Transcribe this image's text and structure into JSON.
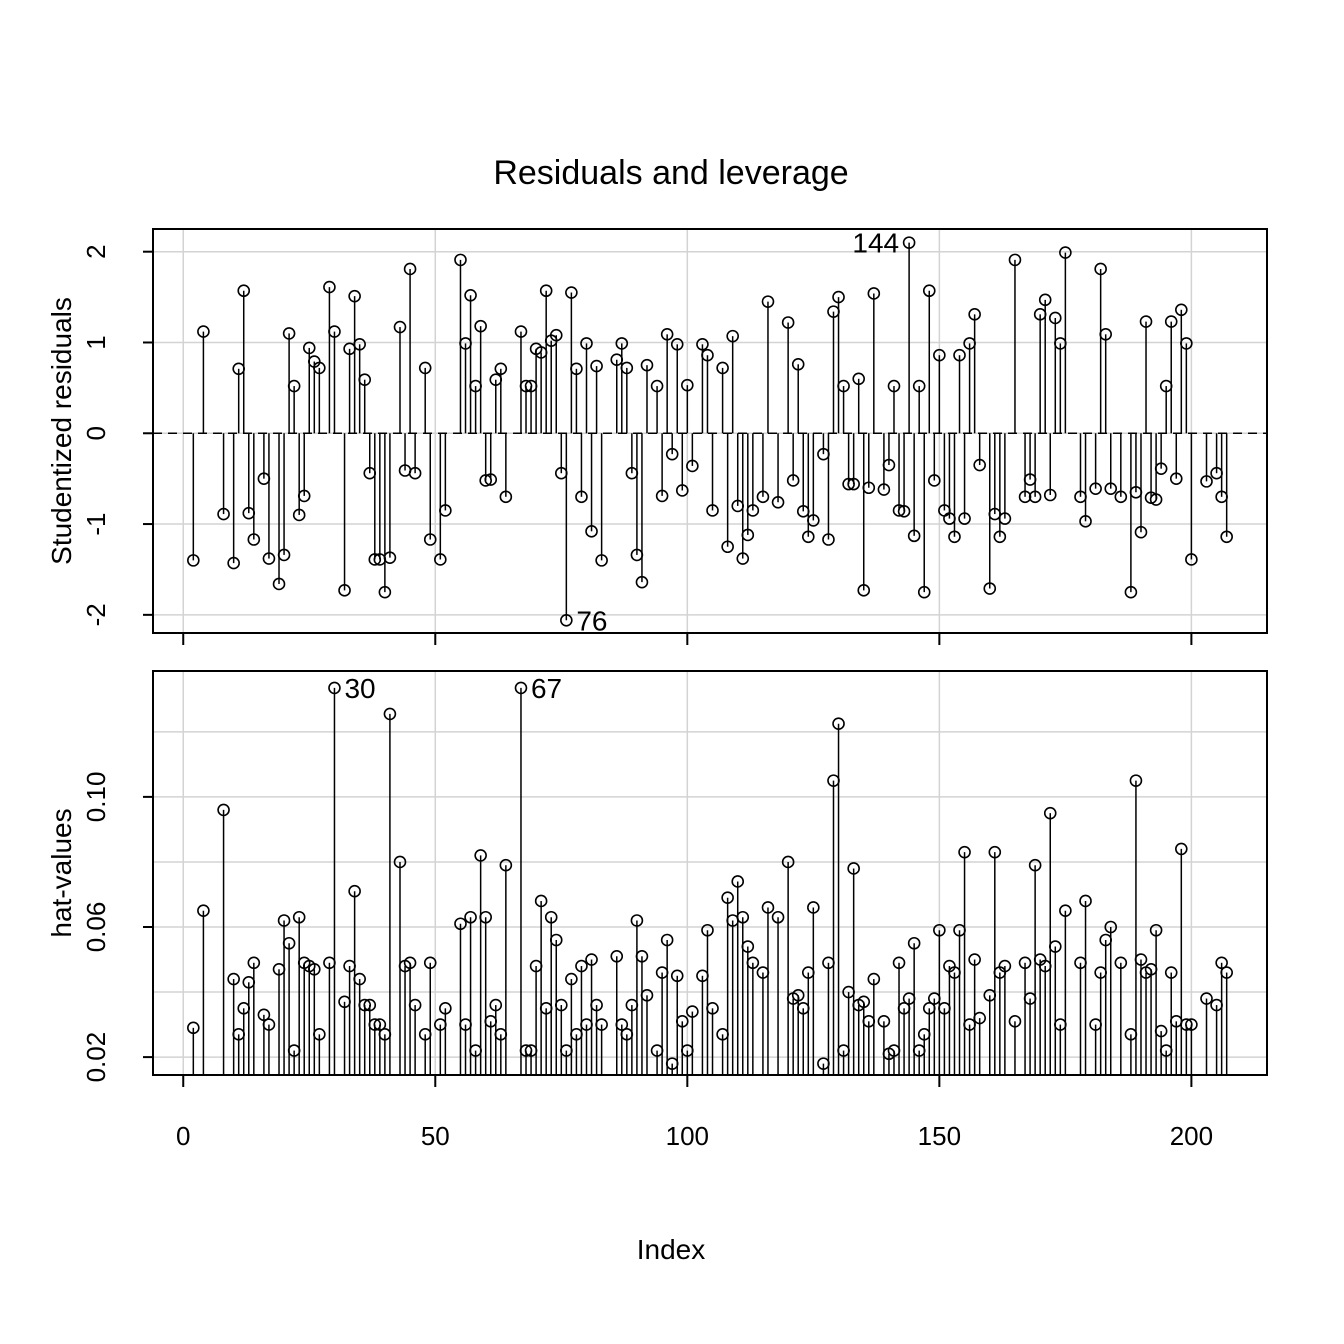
{
  "chart_data": {
    "title": "Residuals and leverage",
    "xlabel": "Index",
    "x_ticks": [
      0,
      50,
      100,
      150,
      200
    ],
    "xlim": [
      -6,
      215
    ],
    "grid": true,
    "panels": [
      {
        "type": "stem",
        "ylabel": "Studentized residuals",
        "y_ticks": [
          -2,
          -1,
          0,
          1,
          2
        ],
        "ylim": [
          -2.2,
          2.25
        ],
        "reference_line": 0,
        "labeled_points": [
          {
            "text": "144",
            "x": 144,
            "side": "left"
          },
          {
            "text": "76",
            "x": 76,
            "side": "right"
          }
        ]
      },
      {
        "type": "stem",
        "ylabel": "hat-values",
        "y_ticks": [
          0.02,
          0.06,
          0.1
        ],
        "y_tick_labels": [
          "0.02",
          "0.06",
          "0.10"
        ],
        "ylim": [
          0.0145,
          0.1387
        ],
        "reference_line": null,
        "labeled_points": [
          {
            "text": "30",
            "x": 30,
            "side": "right"
          },
          {
            "text": "67",
            "x": 67,
            "side": "right"
          }
        ]
      }
    ],
    "points": [
      {
        "x": 2,
        "residual": -1.4,
        "hat": 0.029
      },
      {
        "x": 4,
        "residual": 1.12,
        "hat": 0.065
      },
      {
        "x": 8,
        "residual": -0.89,
        "hat": 0.096
      },
      {
        "x": 10,
        "residual": -1.43,
        "hat": 0.044
      },
      {
        "x": 11,
        "residual": 0.71,
        "hat": 0.027
      },
      {
        "x": 12,
        "residual": 1.57,
        "hat": 0.035
      },
      {
        "x": 13,
        "residual": -0.88,
        "hat": 0.043
      },
      {
        "x": 14,
        "residual": -1.17,
        "hat": 0.049
      },
      {
        "x": 16,
        "residual": -0.5,
        "hat": 0.033
      },
      {
        "x": 17,
        "residual": -1.38,
        "hat": 0.03
      },
      {
        "x": 19,
        "residual": -1.66,
        "hat": 0.047
      },
      {
        "x": 20,
        "residual": -1.34,
        "hat": 0.062
      },
      {
        "x": 21,
        "residual": 1.1,
        "hat": 0.055
      },
      {
        "x": 22,
        "residual": 0.52,
        "hat": 0.022
      },
      {
        "x": 23,
        "residual": -0.9,
        "hat": 0.063
      },
      {
        "x": 24,
        "residual": -0.69,
        "hat": 0.049
      },
      {
        "x": 25,
        "residual": 0.94,
        "hat": 0.048
      },
      {
        "x": 26,
        "residual": 0.79,
        "hat": 0.047
      },
      {
        "x": 27,
        "residual": 0.72,
        "hat": 0.027
      },
      {
        "x": 29,
        "residual": 1.61,
        "hat": 0.049
      },
      {
        "x": 30,
        "residual": 1.12,
        "hat": 0.1335
      },
      {
        "x": 32,
        "residual": -1.73,
        "hat": 0.037
      },
      {
        "x": 33,
        "residual": 0.93,
        "hat": 0.048
      },
      {
        "x": 34,
        "residual": 1.51,
        "hat": 0.071
      },
      {
        "x": 35,
        "residual": 0.98,
        "hat": 0.044
      },
      {
        "x": 36,
        "residual": 0.59,
        "hat": 0.036
      },
      {
        "x": 37,
        "residual": -0.44,
        "hat": 0.036
      },
      {
        "x": 38,
        "residual": -1.39,
        "hat": 0.03
      },
      {
        "x": 39,
        "residual": -1.39,
        "hat": 0.03
      },
      {
        "x": 40,
        "residual": -1.75,
        "hat": 0.027
      },
      {
        "x": 41,
        "residual": -1.37,
        "hat": 0.1255
      },
      {
        "x": 43,
        "residual": 1.17,
        "hat": 0.08
      },
      {
        "x": 44,
        "residual": -0.41,
        "hat": 0.048
      },
      {
        "x": 45,
        "residual": 1.81,
        "hat": 0.049
      },
      {
        "x": 46,
        "residual": -0.44,
        "hat": 0.036
      },
      {
        "x": 48,
        "residual": 0.72,
        "hat": 0.027
      },
      {
        "x": 49,
        "residual": -1.17,
        "hat": 0.049
      },
      {
        "x": 51,
        "residual": -1.39,
        "hat": 0.03
      },
      {
        "x": 52,
        "residual": -0.85,
        "hat": 0.035
      },
      {
        "x": 55,
        "residual": 1.91,
        "hat": 0.061
      },
      {
        "x": 56,
        "residual": 0.99,
        "hat": 0.03
      },
      {
        "x": 57,
        "residual": 1.52,
        "hat": 0.063
      },
      {
        "x": 58,
        "residual": 0.52,
        "hat": 0.022
      },
      {
        "x": 59,
        "residual": 1.18,
        "hat": 0.082
      },
      {
        "x": 60,
        "residual": -0.52,
        "hat": 0.063
      },
      {
        "x": 61,
        "residual": -0.51,
        "hat": 0.031
      },
      {
        "x": 62,
        "residual": 0.59,
        "hat": 0.036
      },
      {
        "x": 63,
        "residual": 0.71,
        "hat": 0.027
      },
      {
        "x": 64,
        "residual": -0.7,
        "hat": 0.079
      },
      {
        "x": 67,
        "residual": 1.12,
        "hat": 0.1335
      },
      {
        "x": 68,
        "residual": 0.52,
        "hat": 0.022
      },
      {
        "x": 69,
        "residual": 0.52,
        "hat": 0.022
      },
      {
        "x": 70,
        "residual": 0.93,
        "hat": 0.048
      },
      {
        "x": 71,
        "residual": 0.89,
        "hat": 0.068
      },
      {
        "x": 72,
        "residual": 1.57,
        "hat": 0.035
      },
      {
        "x": 73,
        "residual": 1.02,
        "hat": 0.063
      },
      {
        "x": 74,
        "residual": 1.08,
        "hat": 0.056
      },
      {
        "x": 75,
        "residual": -0.44,
        "hat": 0.036
      },
      {
        "x": 76,
        "residual": -2.06,
        "hat": 0.022
      },
      {
        "x": 77,
        "residual": 1.55,
        "hat": 0.044
      },
      {
        "x": 78,
        "residual": 0.71,
        "hat": 0.027
      },
      {
        "x": 79,
        "residual": -0.7,
        "hat": 0.048
      },
      {
        "x": 80,
        "residual": 0.99,
        "hat": 0.03
      },
      {
        "x": 81,
        "residual": -1.08,
        "hat": 0.05
      },
      {
        "x": 82,
        "residual": 0.74,
        "hat": 0.036
      },
      {
        "x": 83,
        "residual": -1.4,
        "hat": 0.03
      },
      {
        "x": 86,
        "residual": 0.81,
        "hat": 0.051
      },
      {
        "x": 87,
        "residual": 0.99,
        "hat": 0.03
      },
      {
        "x": 88,
        "residual": 0.72,
        "hat": 0.027
      },
      {
        "x": 89,
        "residual": -0.44,
        "hat": 0.036
      },
      {
        "x": 90,
        "residual": -1.34,
        "hat": 0.062
      },
      {
        "x": 91,
        "residual": -1.64,
        "hat": 0.051
      },
      {
        "x": 92,
        "residual": 0.75,
        "hat": 0.039
      },
      {
        "x": 94,
        "residual": 0.52,
        "hat": 0.022
      },
      {
        "x": 95,
        "residual": -0.69,
        "hat": 0.046
      },
      {
        "x": 96,
        "residual": 1.09,
        "hat": 0.056
      },
      {
        "x": 97,
        "residual": -0.23,
        "hat": 0.018
      },
      {
        "x": 98,
        "residual": 0.98,
        "hat": 0.045
      },
      {
        "x": 99,
        "residual": -0.63,
        "hat": 0.031
      },
      {
        "x": 100,
        "residual": 0.53,
        "hat": 0.022
      },
      {
        "x": 101,
        "residual": -0.36,
        "hat": 0.034
      },
      {
        "x": 103,
        "residual": 0.98,
        "hat": 0.045
      },
      {
        "x": 104,
        "residual": 0.86,
        "hat": 0.059
      },
      {
        "x": 105,
        "residual": -0.85,
        "hat": 0.035
      },
      {
        "x": 107,
        "residual": 0.72,
        "hat": 0.027
      },
      {
        "x": 108,
        "residual": -1.25,
        "hat": 0.069
      },
      {
        "x": 109,
        "residual": 1.07,
        "hat": 0.062
      },
      {
        "x": 110,
        "residual": -0.8,
        "hat": 0.074
      },
      {
        "x": 111,
        "residual": -1.38,
        "hat": 0.063
      },
      {
        "x": 112,
        "residual": -1.12,
        "hat": 0.054
      },
      {
        "x": 113,
        "residual": -0.85,
        "hat": 0.049
      },
      {
        "x": 115,
        "residual": -0.7,
        "hat": 0.046
      },
      {
        "x": 116,
        "residual": 1.45,
        "hat": 0.066
      },
      {
        "x": 118,
        "residual": -0.76,
        "hat": 0.063
      },
      {
        "x": 120,
        "residual": 1.22,
        "hat": 0.08
      },
      {
        "x": 121,
        "residual": -0.52,
        "hat": 0.038
      },
      {
        "x": 122,
        "residual": 0.76,
        "hat": 0.039
      },
      {
        "x": 123,
        "residual": -0.86,
        "hat": 0.035
      },
      {
        "x": 124,
        "residual": -1.14,
        "hat": 0.046
      },
      {
        "x": 125,
        "residual": -0.96,
        "hat": 0.066
      },
      {
        "x": 127,
        "residual": -0.23,
        "hat": 0.018
      },
      {
        "x": 128,
        "residual": -1.17,
        "hat": 0.049
      },
      {
        "x": 129,
        "residual": 1.34,
        "hat": 0.105
      },
      {
        "x": 130,
        "residual": 1.5,
        "hat": 0.1225
      },
      {
        "x": 131,
        "residual": 0.52,
        "hat": 0.022
      },
      {
        "x": 132,
        "residual": -0.56,
        "hat": 0.04
      },
      {
        "x": 133,
        "residual": -0.56,
        "hat": 0.078
      },
      {
        "x": 134,
        "residual": 0.6,
        "hat": 0.036
      },
      {
        "x": 135,
        "residual": -1.73,
        "hat": 0.037
      },
      {
        "x": 136,
        "residual": -0.6,
        "hat": 0.031
      },
      {
        "x": 137,
        "residual": 1.54,
        "hat": 0.044
      },
      {
        "x": 139,
        "residual": -0.62,
        "hat": 0.031
      },
      {
        "x": 140,
        "residual": -0.35,
        "hat": 0.021
      },
      {
        "x": 141,
        "residual": 0.52,
        "hat": 0.022
      },
      {
        "x": 142,
        "residual": -0.85,
        "hat": 0.049
      },
      {
        "x": 143,
        "residual": -0.86,
        "hat": 0.035
      },
      {
        "x": 144,
        "residual": 2.1,
        "hat": 0.038
      },
      {
        "x": 145,
        "residual": -1.13,
        "hat": 0.055
      },
      {
        "x": 146,
        "residual": 0.52,
        "hat": 0.022
      },
      {
        "x": 147,
        "residual": -1.75,
        "hat": 0.027
      },
      {
        "x": 148,
        "residual": 1.57,
        "hat": 0.035
      },
      {
        "x": 149,
        "residual": -0.52,
        "hat": 0.038
      },
      {
        "x": 150,
        "residual": 0.86,
        "hat": 0.059
      },
      {
        "x": 151,
        "residual": -0.85,
        "hat": 0.035
      },
      {
        "x": 152,
        "residual": -0.94,
        "hat": 0.048
      },
      {
        "x": 153,
        "residual": -1.14,
        "hat": 0.046
      },
      {
        "x": 154,
        "residual": 0.86,
        "hat": 0.059
      },
      {
        "x": 155,
        "residual": -0.94,
        "hat": 0.083
      },
      {
        "x": 156,
        "residual": 0.99,
        "hat": 0.03
      },
      {
        "x": 157,
        "residual": 1.31,
        "hat": 0.05
      },
      {
        "x": 158,
        "residual": -0.35,
        "hat": 0.032
      },
      {
        "x": 160,
        "residual": -1.71,
        "hat": 0.039
      },
      {
        "x": 161,
        "residual": -0.89,
        "hat": 0.083
      },
      {
        "x": 162,
        "residual": -1.14,
        "hat": 0.046
      },
      {
        "x": 163,
        "residual": -0.94,
        "hat": 0.048
      },
      {
        "x": 165,
        "residual": 1.91,
        "hat": 0.031
      },
      {
        "x": 167,
        "residual": -0.7,
        "hat": 0.049
      },
      {
        "x": 168,
        "residual": -0.51,
        "hat": 0.038
      },
      {
        "x": 169,
        "residual": -0.7,
        "hat": 0.079
      },
      {
        "x": 170,
        "residual": 1.31,
        "hat": 0.05
      },
      {
        "x": 171,
        "residual": 1.47,
        "hat": 0.048
      },
      {
        "x": 172,
        "residual": -0.68,
        "hat": 0.095
      },
      {
        "x": 173,
        "residual": 1.27,
        "hat": 0.054
      },
      {
        "x": 174,
        "residual": 0.99,
        "hat": 0.03
      },
      {
        "x": 175,
        "residual": 1.99,
        "hat": 0.065
      },
      {
        "x": 178,
        "residual": -0.7,
        "hat": 0.049
      },
      {
        "x": 179,
        "residual": -0.97,
        "hat": 0.068
      },
      {
        "x": 181,
        "residual": -0.61,
        "hat": 0.03
      },
      {
        "x": 182,
        "residual": 1.81,
        "hat": 0.046
      },
      {
        "x": 183,
        "residual": 1.09,
        "hat": 0.056
      },
      {
        "x": 184,
        "residual": -0.61,
        "hat": 0.06
      },
      {
        "x": 186,
        "residual": -0.7,
        "hat": 0.049
      },
      {
        "x": 188,
        "residual": -1.75,
        "hat": 0.027
      },
      {
        "x": 189,
        "residual": -0.65,
        "hat": 0.105
      },
      {
        "x": 190,
        "residual": -1.09,
        "hat": 0.05
      },
      {
        "x": 191,
        "residual": 1.23,
        "hat": 0.046
      },
      {
        "x": 192,
        "residual": -0.71,
        "hat": 0.047
      },
      {
        "x": 193,
        "residual": -0.73,
        "hat": 0.059
      },
      {
        "x": 194,
        "residual": -0.39,
        "hat": 0.028
      },
      {
        "x": 195,
        "residual": 0.52,
        "hat": 0.022
      },
      {
        "x": 196,
        "residual": 1.23,
        "hat": 0.046
      },
      {
        "x": 197,
        "residual": -0.5,
        "hat": 0.031
      },
      {
        "x": 198,
        "residual": 1.36,
        "hat": 0.084
      },
      {
        "x": 199,
        "residual": 0.99,
        "hat": 0.03
      },
      {
        "x": 200,
        "residual": -1.39,
        "hat": 0.03
      },
      {
        "x": 203,
        "residual": -0.53,
        "hat": 0.038
      },
      {
        "x": 205,
        "residual": -0.44,
        "hat": 0.036
      },
      {
        "x": 206,
        "residual": -0.7,
        "hat": 0.049
      },
      {
        "x": 207,
        "residual": -1.14,
        "hat": 0.046
      }
    ]
  }
}
